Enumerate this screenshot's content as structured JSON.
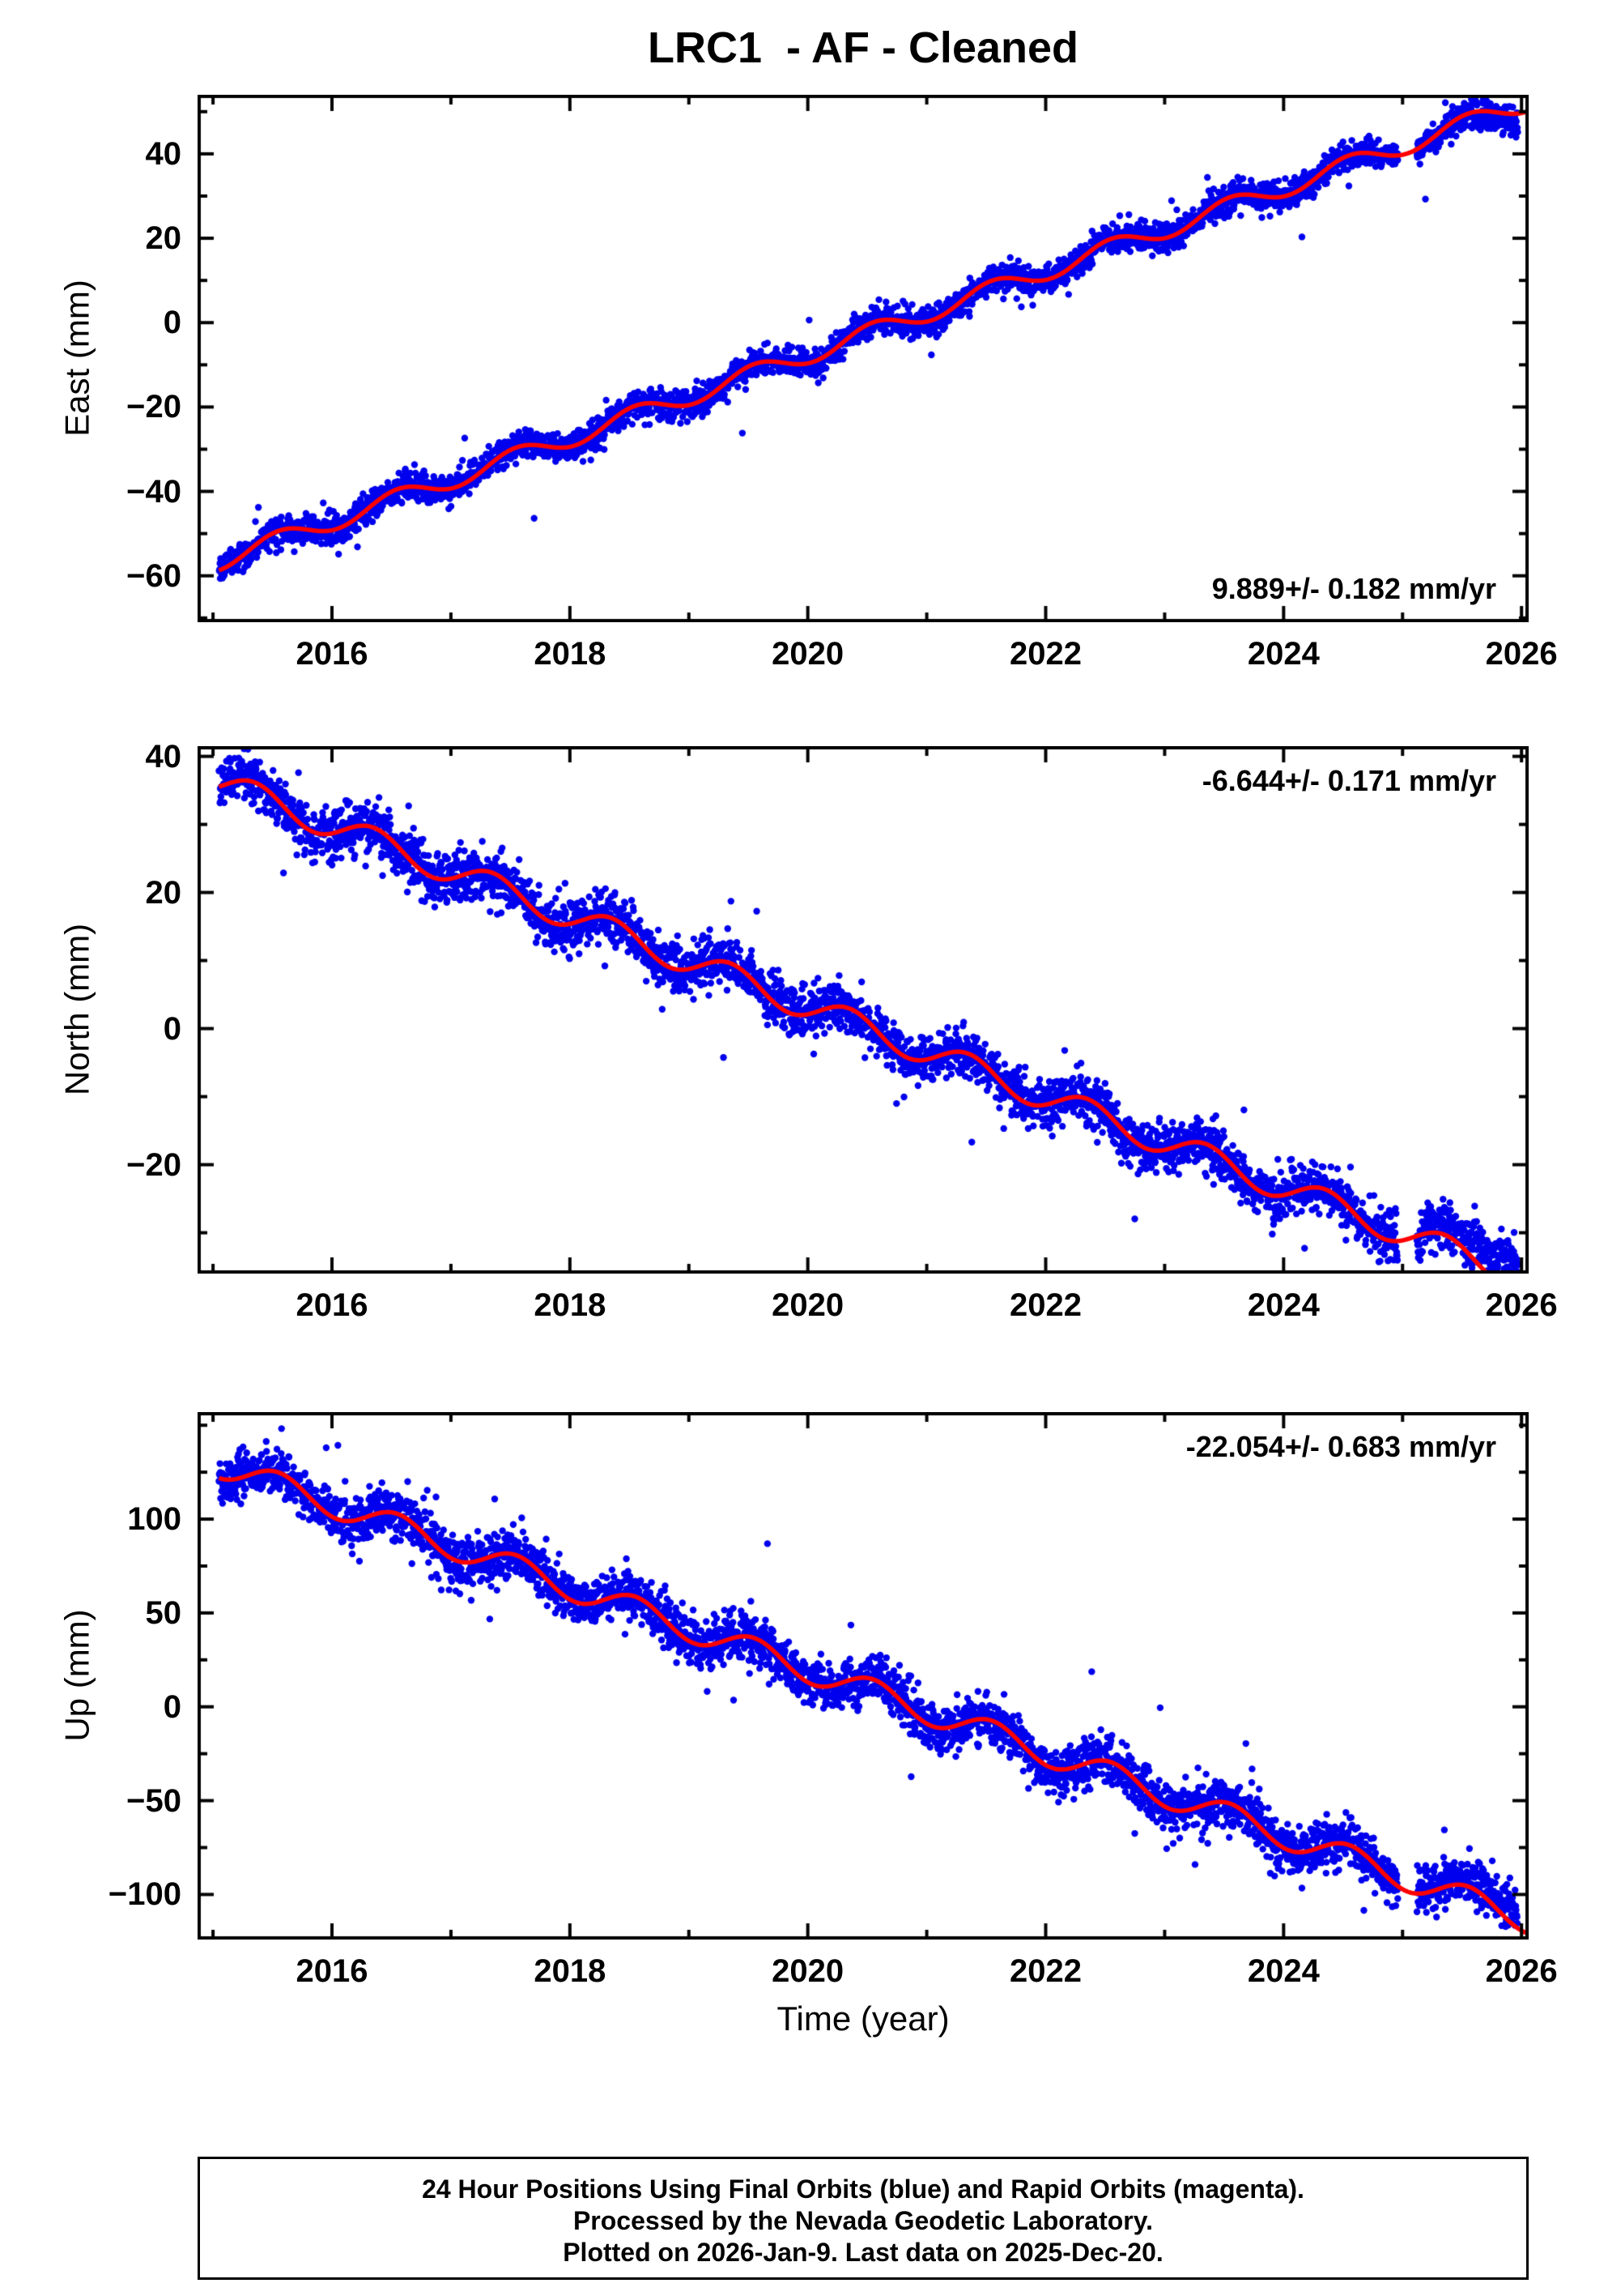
{
  "title": "LRC1  - AF - Cleaned",
  "xlabel": "Time (year)",
  "footer": {
    "line1": "24 Hour Positions Using Final Orbits (blue) and Rapid Orbits (magenta).",
    "line2": "Processed by the Nevada Geodetic Laboratory.",
    "line3": "Plotted on 2026-Jan-9. Last data on 2025-Dec-20."
  },
  "colors": {
    "points": "#0000ee",
    "line": "#ff0000",
    "frame": "#000000"
  },
  "chart_data": [
    {
      "type": "scatter",
      "name": "east",
      "ylabel": "East (mm)",
      "rate_label": "9.889+/- 0.182 mm/yr",
      "rate_label_pos": "bottom-right",
      "x_range": [
        2014.87,
        2026.06
      ],
      "xticks": [
        2016,
        2018,
        2020,
        2022,
        2024,
        2026
      ],
      "x_minor_step": 1,
      "ylim": [
        -71,
        54
      ],
      "yticks": [
        -60,
        -40,
        -20,
        0,
        20,
        40
      ],
      "y_minor_step": 10,
      "data_start": 2015.05,
      "data_end": 2025.97,
      "gaps": [
        [
          2024.96,
          2025.12
        ]
      ],
      "model": {
        "y0": -57.0,
        "rate": 9.889,
        "seasonal_amp": 2.2,
        "seasonal_phase": 0.3
      },
      "data_tail": {
        "start": 2025.3,
        "amp": -2.5
      },
      "red_tail": {
        "start": 2025.3,
        "amp": 0
      },
      "noise_sigma": 1.7,
      "seed": 7
    },
    {
      "type": "scatter",
      "name": "north",
      "ylabel": "North (mm)",
      "rate_label": "-6.644+/- 0.171 mm/yr",
      "rate_label_pos": "top-right",
      "x_range": [
        2014.87,
        2026.06
      ],
      "xticks": [
        2016,
        2018,
        2020,
        2022,
        2024,
        2026
      ],
      "x_minor_step": 1,
      "ylim": [
        -36,
        41.5
      ],
      "yticks": [
        -20,
        0,
        20,
        40
      ],
      "y_minor_step": 10,
      "data_start": 2015.05,
      "data_end": 2025.97,
      "gaps": [
        [
          2024.96,
          2025.12
        ]
      ],
      "model": {
        "y0": 36.5,
        "rate": -6.644,
        "seasonal_amp": 2.0,
        "seasonal_phase": 0.1
      },
      "data_tail": {
        "start": 2024.5,
        "amp": 4.5
      },
      "red_tail": {
        "start": 2024.5,
        "amp": 0
      },
      "noise_sigma": 1.8,
      "seed": 13
    },
    {
      "type": "scatter",
      "name": "up",
      "ylabel": "Up (mm)",
      "rate_label": "-22.054+/- 0.683 mm/yr",
      "rate_label_pos": "top-right",
      "x_range": [
        2014.87,
        2026.06
      ],
      "xticks": [
        2016,
        2018,
        2020,
        2022,
        2024,
        2026
      ],
      "x_minor_step": 1,
      "ylim": [
        -124,
        157
      ],
      "yticks": [
        -100,
        -50,
        0,
        50,
        100
      ],
      "y_minor_step": 25,
      "data_start": 2015.05,
      "data_end": 2025.97,
      "gaps": [
        [
          2024.96,
          2025.12
        ]
      ],
      "model": {
        "y0": 130.0,
        "rate": -22.054,
        "seasonal_amp": 7.0,
        "seasonal_phase": 0.3
      },
      "data_tail": {
        "start": 2024.6,
        "amp": 7
      },
      "red_tail": {
        "start": 2024.6,
        "amp": 0
      },
      "noise_sigma": 6.5,
      "seed": 21
    }
  ]
}
